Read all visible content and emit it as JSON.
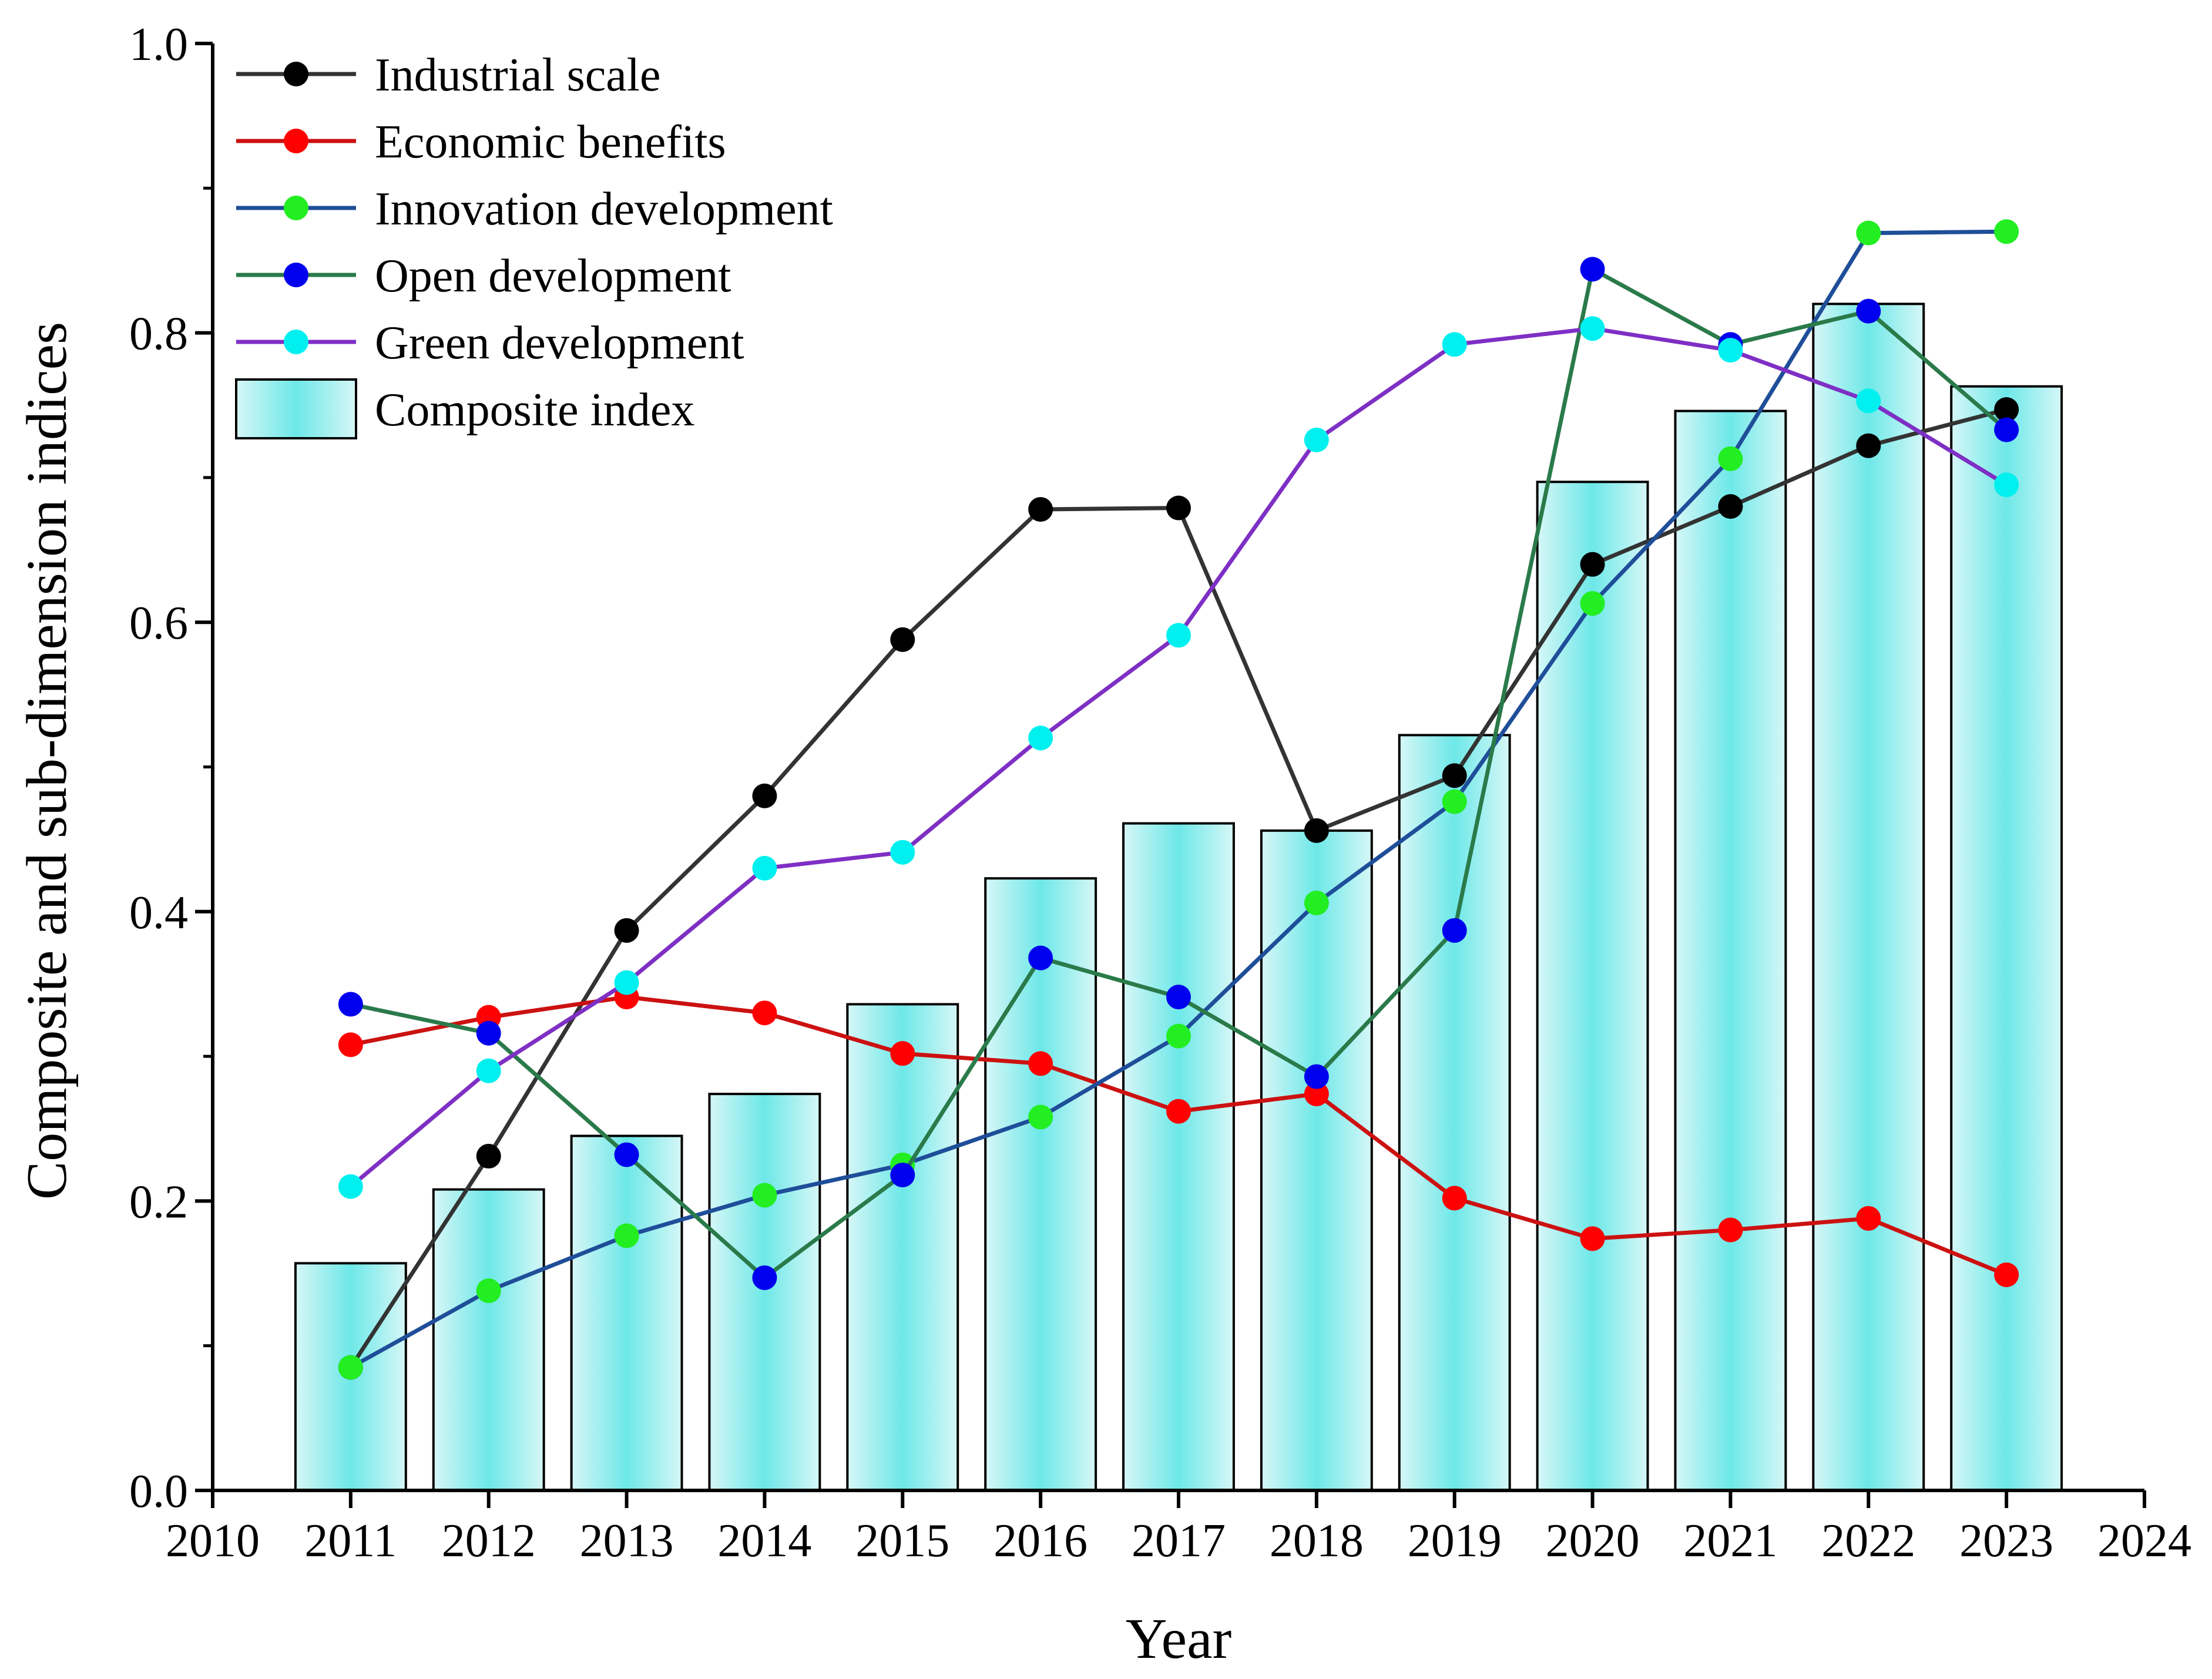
{
  "chart_data": {
    "type": "bar",
    "xlabel": "Year",
    "ylabel": "Composite and sub-dimension indices",
    "xlim": [
      2010,
      2024
    ],
    "ylim": [
      0.0,
      1.0
    ],
    "x_ticks": [
      "2010",
      "2011",
      "2012",
      "2013",
      "2014",
      "2015",
      "2016",
      "2017",
      "2018",
      "2019",
      "2020",
      "2021",
      "2022",
      "2023",
      "2024"
    ],
    "y_ticks": [
      "0.0",
      "0.2",
      "0.4",
      "0.6",
      "0.8",
      "1.0"
    ],
    "legend_position": "top-left",
    "categories": [
      2011,
      2012,
      2013,
      2014,
      2015,
      2016,
      2017,
      2018,
      2019,
      2020,
      2021,
      2022,
      2023
    ],
    "bars": {
      "name": "Composite index",
      "fill": "#c9f4f4",
      "fill_glow": "#3de0e0",
      "stroke": "#000000",
      "values": [
        0.157,
        0.208,
        0.245,
        0.274,
        0.336,
        0.423,
        0.461,
        0.456,
        0.522,
        0.697,
        0.746,
        0.82,
        0.763
      ]
    },
    "series": [
      {
        "name": "Industrial scale",
        "line_color": "#333333",
        "marker_color": "#000000",
        "values": [
          0.085,
          0.231,
          0.387,
          0.48,
          0.588,
          0.678,
          0.679,
          0.456,
          0.494,
          0.64,
          0.68,
          0.722,
          0.747
        ]
      },
      {
        "name": "Economic benefits",
        "line_color": "#cc1111",
        "marker_color": "#ff0000",
        "values": [
          0.308,
          0.327,
          0.341,
          0.33,
          0.302,
          0.295,
          0.262,
          0.274,
          0.202,
          0.174,
          0.18,
          0.188,
          0.149
        ]
      },
      {
        "name": "Innovation development",
        "line_color": "#1f4e99",
        "marker_color": "#22ee22",
        "values": [
          0.085,
          0.138,
          0.176,
          0.204,
          0.225,
          0.258,
          0.314,
          0.406,
          0.476,
          0.613,
          0.713,
          0.869,
          0.87
        ]
      },
      {
        "name": "Open development",
        "line_color": "#2a7a4a",
        "marker_color": "#0000ee",
        "values": [
          0.336,
          0.316,
          0.232,
          0.147,
          0.218,
          0.368,
          0.341,
          0.286,
          0.387,
          0.844,
          0.792,
          0.815,
          0.733
        ]
      },
      {
        "name": "Green development",
        "line_color": "#7e2fc4",
        "marker_color": "#00f0f0",
        "values": [
          0.21,
          0.29,
          0.351,
          0.43,
          0.441,
          0.52,
          0.591,
          0.726,
          0.792,
          0.803,
          0.788,
          0.753,
          0.695
        ]
      }
    ]
  }
}
